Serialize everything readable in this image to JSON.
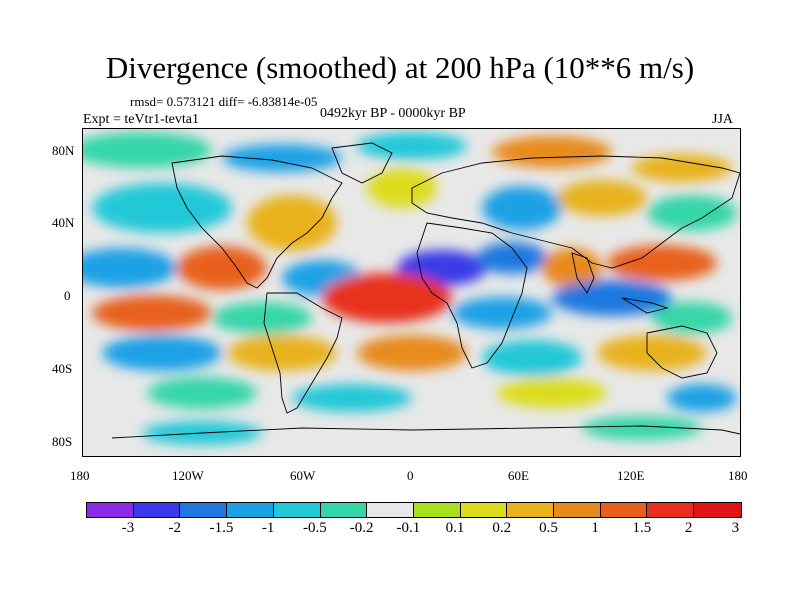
{
  "title": "Divergence (smoothed) at 200 hPa (10**6 m/s)",
  "stats": "rmsd= 0.573121 diff= -6.83814e-05",
  "period": "0492kyr BP - 0000kyr BP",
  "experiment": "Expt = teVtr1-tevta1",
  "season": "JJA",
  "lat_ticks": [
    "80N",
    "40N",
    "0",
    "40S",
    "80S"
  ],
  "lon_ticks": [
    "180",
    "120W",
    "60W",
    "0",
    "60E",
    "120E",
    "180"
  ],
  "colorbar": {
    "colors": [
      "#8b2ce8",
      "#3a3ae8",
      "#1f78e0",
      "#1ea0e6",
      "#20c8d8",
      "#34d6a8",
      "#e8e8e8",
      "#a8e020",
      "#dcdc1a",
      "#e8b21c",
      "#e88a1c",
      "#e8601c",
      "#e8301c",
      "#e01414"
    ],
    "labels": [
      "-3",
      "-2",
      "-1.5",
      "-1",
      "-0.5",
      "-0.2",
      "-0.1",
      "0.1",
      "0.2",
      "0.5",
      "1",
      "1.5",
      "2",
      "3"
    ]
  }
}
